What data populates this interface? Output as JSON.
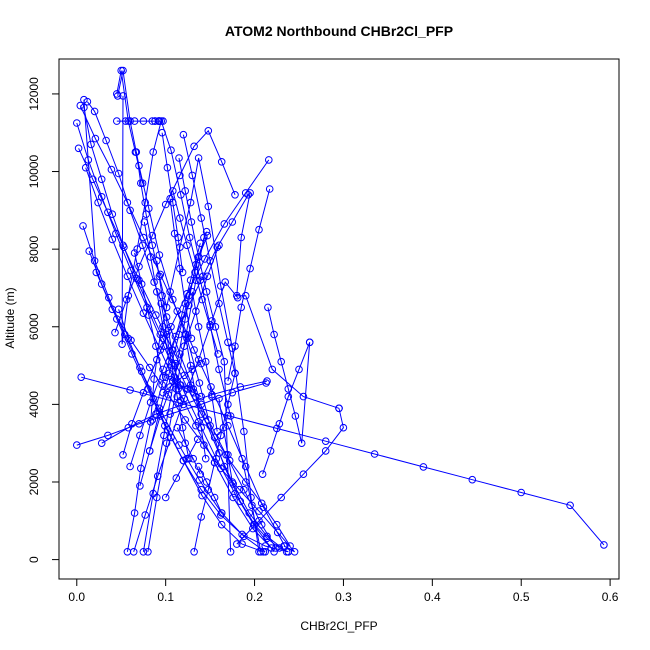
{
  "chart_data": {
    "type": "line",
    "title": "ATOM2 Northbound CHBr2Cl_PFP",
    "xlabel": "CHBr2Cl_PFP",
    "ylabel": "Altitude (m)",
    "xlim": [
      -0.02,
      0.61
    ],
    "ylim": [
      -500,
      12900
    ],
    "xticks": [
      0.0,
      0.1,
      0.2,
      0.3,
      0.4,
      0.5,
      0.6
    ],
    "xtick_labels": [
      "0.0",
      "0.1",
      "0.2",
      "0.3",
      "0.4",
      "0.5",
      "0.6"
    ],
    "yticks": [
      0,
      2000,
      4000,
      6000,
      8000,
      10000,
      12000
    ],
    "ytick_labels": [
      "0",
      "2000",
      "4000",
      "6000",
      "8000",
      "10000",
      "12000"
    ],
    "grid": false,
    "legend": "none",
    "marker": "open-circle",
    "color": "#0000ff",
    "series": [
      {
        "x": [
          0.057,
          0.065,
          0.072,
          0.083,
          0.087,
          0.094,
          0.105,
          0.116,
          0.128,
          0.137,
          0.148,
          0.162,
          0.175,
          0.188,
          0.196,
          0.205
        ],
        "y": [
          200,
          1200,
          2350,
          3550,
          4650,
          5800,
          6900,
          8050,
          9200,
          10350,
          9100,
          7050,
          5450,
          3300,
          1600,
          200
        ]
      },
      {
        "x": [
          0.207,
          0.197,
          0.186,
          0.173,
          0.16,
          0.15,
          0.139,
          0.127,
          0.117,
          0.106,
          0.095,
          0.086,
          0.077,
          0.068,
          0.058,
          0.051,
          0.052
        ],
        "y": [
          200,
          1400,
          2600,
          3700,
          4900,
          6050,
          7200,
          8300,
          9400,
          10550,
          11300,
          10500,
          9200,
          8000,
          6800,
          5550,
          11950
        ]
      },
      {
        "x": [
          0.046,
          0.052,
          0.06,
          0.07,
          0.081,
          0.093,
          0.108,
          0.124,
          0.138,
          0.15,
          0.166,
          0.184,
          0.2,
          0.214,
          0.228,
          0.238
        ],
        "y": [
          11950,
          12600,
          11300,
          10150,
          9050,
          7850,
          6700,
          5700,
          4550,
          3450,
          2400,
          1500,
          900,
          550,
          300,
          200
        ]
      },
      {
        "x": [
          0.24,
          0.225,
          0.208,
          0.19,
          0.172,
          0.155,
          0.14,
          0.125,
          0.111,
          0.097,
          0.082,
          0.067,
          0.053,
          0.04,
          0.028,
          0.016,
          0.008
        ],
        "y": [
          350,
          900,
          1450,
          2000,
          2550,
          3150,
          3750,
          4400,
          5050,
          5700,
          6450,
          7250,
          8050,
          8900,
          9800,
          10700,
          11650
        ]
      },
      {
        "x": [
          0.012,
          0.02,
          0.033,
          0.047,
          0.06,
          0.074,
          0.087,
          0.101,
          0.116,
          0.131,
          0.145,
          0.16,
          0.176,
          0.194,
          0.214,
          0.236
        ],
        "y": [
          11800,
          11550,
          10800,
          9950,
          9000,
          8100,
          7150,
          6250,
          5300,
          4400,
          3550,
          2750,
          1950,
          1200,
          600,
          200
        ]
      },
      {
        "x": [
          0.233,
          0.245,
          0.226,
          0.205,
          0.183,
          0.162,
          0.143,
          0.122,
          0.103,
          0.082,
          0.061,
          0.04,
          0.022,
          0.008
        ],
        "y": [
          350,
          200,
          700,
          1250,
          1800,
          2350,
          2950,
          3600,
          4250,
          4950,
          5650,
          6450,
          7400,
          11850
        ]
      },
      {
        "x": [
          0.004,
          0.021,
          0.039,
          0.057,
          0.075,
          0.094,
          0.113,
          0.132,
          0.151,
          0.17,
          0.19,
          0.21,
          0.234
        ],
        "y": [
          11700,
          10850,
          10050,
          9200,
          8300,
          7350,
          6400,
          5400,
          4450,
          3450,
          2400,
          1350,
          350
        ]
      },
      {
        "x": [
          0.0,
          0.013,
          0.028,
          0.044,
          0.061,
          0.079,
          0.098,
          0.117,
          0.137,
          0.157,
          0.178,
          0.199,
          0.222
        ],
        "y": [
          11250,
          10300,
          9350,
          8400,
          7450,
          6500,
          5500,
          4500,
          3550,
          2600,
          1700,
          900,
          200
        ]
      },
      {
        "x": [
          0.002,
          0.018,
          0.035,
          0.052,
          0.07,
          0.089,
          0.108,
          0.128,
          0.148,
          0.168,
          0.188,
          0.208,
          0.224
        ],
        "y": [
          10600,
          9800,
          8950,
          8100,
          7200,
          6300,
          5400,
          4500,
          3600,
          2700,
          1800,
          900,
          300
        ]
      },
      {
        "x": [
          0.01,
          0.024,
          0.04,
          0.057,
          0.075,
          0.094,
          0.114,
          0.134,
          0.155,
          0.176,
          0.198,
          0.219
        ],
        "y": [
          10100,
          9200,
          8250,
          7300,
          6350,
          5400,
          4400,
          3450,
          2500,
          1600,
          800,
          300
        ]
      },
      {
        "x": [
          0.014,
          0.028,
          0.045,
          0.062,
          0.08,
          0.099,
          0.12,
          0.141,
          0.163,
          0.186,
          0.21
        ],
        "y": [
          7950,
          7100,
          6200,
          5300,
          4400,
          3450,
          2550,
          1650,
          900,
          400,
          200
        ]
      },
      {
        "x": [
          0.007,
          0.02,
          0.036,
          0.054,
          0.073,
          0.093,
          0.115,
          0.138,
          0.163,
          0.188,
          0.212
        ],
        "y": [
          8600,
          7700,
          6750,
          5800,
          4850,
          3900,
          2950,
          2050,
          1200,
          600,
          200
        ]
      },
      {
        "x": [
          0.047,
          0.058,
          0.071,
          0.086,
          0.102,
          0.12,
          0.14,
          0.162,
          0.186,
          0.212,
          0.238
        ],
        "y": [
          6450,
          5700,
          4950,
          4150,
          3350,
          2550,
          1800,
          1150,
          650,
          350,
          200
        ]
      },
      {
        "x": [
          0.052,
          0.062,
          0.075,
          0.09,
          0.106,
          0.124,
          0.144,
          0.166,
          0.19,
          0.216
        ],
        "y": [
          2700,
          3500,
          4300,
          5150,
          6000,
          6850,
          7750,
          8650,
          9450,
          10300
        ]
      },
      {
        "x": [
          0.043,
          0.056,
          0.07,
          0.085,
          0.1,
          0.116,
          0.132,
          0.148,
          0.163,
          0.178
        ],
        "y": [
          5850,
          6700,
          7550,
          8350,
          9150,
          9900,
          10650,
          11050,
          10250,
          9400
        ]
      },
      {
        "x": [
          0.06,
          0.071,
          0.083,
          0.097,
          0.111,
          0.126,
          0.142,
          0.158,
          0.175,
          0.193
        ],
        "y": [
          2400,
          3200,
          4050,
          4900,
          5750,
          6550,
          7300,
          8050,
          8700,
          9400
        ]
      },
      {
        "x": [
          0.064,
          0.077,
          0.091,
          0.106,
          0.121,
          0.137,
          0.152,
          0.167,
          0.181
        ],
        "y": [
          200,
          1150,
          2150,
          3150,
          4150,
          5150,
          6150,
          7150,
          6750
        ]
      },
      {
        "x": [
          0.071,
          0.082,
          0.094,
          0.108,
          0.121,
          0.134,
          0.147,
          0.16
        ],
        "y": [
          1900,
          2800,
          3700,
          4600,
          5500,
          6400,
          7300,
          8100
        ]
      },
      {
        "x": [
          0.075,
          0.086,
          0.098,
          0.11,
          0.122,
          0.134,
          0.146
        ],
        "y": [
          200,
          1700,
          3200,
          4700,
          6200,
          7600,
          8450
        ]
      },
      {
        "x": [
          0.08,
          0.09,
          0.101,
          0.112,
          0.123,
          0.134,
          0.143
        ],
        "y": [
          200,
          1600,
          3000,
          4400,
          5800,
          7200,
          8300
        ]
      },
      {
        "x": [
          0.082,
          0.093,
          0.104,
          0.115,
          0.126,
          0.137,
          0.147
        ],
        "y": [
          2800,
          3800,
          4800,
          5800,
          6800,
          7800,
          8350
        ]
      },
      {
        "x": [
          0.085,
          0.096,
          0.107,
          0.118,
          0.128,
          0.139
        ],
        "y": [
          3600,
          4500,
          5400,
          6300,
          7200,
          8150
        ]
      },
      {
        "x": [
          0.028,
          0.058,
          0.089,
          0.12,
          0.152,
          0.184,
          0.214
        ],
        "y": [
          3000,
          3400,
          3750,
          4000,
          4250,
          4450,
          4600
        ]
      },
      {
        "x": [
          0.0,
          0.035,
          0.07,
          0.105,
          0.14,
          0.175,
          0.213
        ],
        "y": [
          2950,
          3200,
          3500,
          3750,
          4000,
          4300,
          4550
        ]
      },
      {
        "x": [
          0.005,
          0.06,
          0.115,
          0.17,
          0.225,
          0.28,
          0.335,
          0.39,
          0.445,
          0.5,
          0.555,
          0.593
        ],
        "y": [
          4700,
          4370,
          4040,
          3710,
          3380,
          3050,
          2720,
          2390,
          2060,
          1730,
          1400,
          380
        ]
      },
      {
        "x": [
          0.097,
          0.105,
          0.113,
          0.121,
          0.13,
          0.14
        ],
        "y": [
          4300,
          4450,
          4600,
          4750,
          4900,
          5050
        ]
      },
      {
        "x": [
          0.1,
          0.108,
          0.116,
          0.124,
          0.132,
          0.14
        ],
        "y": [
          4700,
          4600,
          4500,
          4400,
          4300,
          4200
        ]
      },
      {
        "x": [
          0.215,
          0.222,
          0.23,
          0.238,
          0.246,
          0.253,
          0.262
        ],
        "y": [
          6500,
          5800,
          5100,
          4400,
          3700,
          3000,
          5600
        ]
      },
      {
        "x": [
          0.262,
          0.25,
          0.238,
          0.228,
          0.218,
          0.209
        ],
        "y": [
          5600,
          4900,
          4200,
          3500,
          2800,
          2200
        ]
      },
      {
        "x": [
          0.195,
          0.185,
          0.18,
          0.19,
          0.22,
          0.255,
          0.295
        ],
        "y": [
          9450,
          8300,
          6800,
          6800,
          4900,
          4200,
          3900
        ]
      },
      {
        "x": [
          0.295,
          0.3,
          0.28,
          0.255,
          0.23,
          0.205,
          0.18
        ],
        "y": [
          3900,
          3400,
          2800,
          2200,
          1600,
          1000,
          400
        ]
      },
      {
        "x": [
          0.217,
          0.205,
          0.195,
          0.185,
          0.178,
          0.17
        ],
        "y": [
          9550,
          8500,
          7500,
          6500,
          5500,
          4600
        ]
      },
      {
        "x": [
          0.12,
          0.13,
          0.14,
          0.15,
          0.16,
          0.17,
          0.178
        ],
        "y": [
          10950,
          9900,
          8800,
          7700,
          6600,
          5600,
          4800
        ]
      },
      {
        "x": [
          0.178,
          0.17,
          0.162,
          0.155,
          0.148,
          0.14,
          0.132
        ],
        "y": [
          4800,
          4000,
          3200,
          2500,
          1800,
          1100,
          200
        ]
      },
      {
        "x": [
          0.108,
          0.116,
          0.124,
          0.133,
          0.141,
          0.15,
          0.159
        ],
        "y": [
          9500,
          8800,
          8100,
          7400,
          6700,
          6000,
          5300
        ]
      },
      {
        "x": [
          0.115,
          0.122,
          0.129,
          0.137,
          0.146,
          0.156,
          0.166,
          0.173
        ],
        "y": [
          10350,
          9500,
          8700,
          7800,
          6900,
          6000,
          5100,
          200
        ]
      },
      {
        "x": [
          0.088,
          0.093,
          0.097,
          0.092,
          0.088,
          0.093
        ],
        "y": [
          11300,
          11300,
          11300,
          11300,
          11300,
          11300
        ]
      },
      {
        "x": [
          0.045,
          0.055,
          0.065,
          0.075,
          0.085,
          0.092
        ],
        "y": [
          11300,
          11300,
          11300,
          11300,
          11300,
          11300
        ]
      },
      {
        "x": [
          0.045,
          0.05,
          0.058,
          0.066,
          0.074
        ],
        "y": [
          12000,
          12600,
          11300,
          10500,
          9700
        ]
      },
      {
        "x": [
          0.067,
          0.072,
          0.078,
          0.085,
          0.093,
          0.101
        ],
        "y": [
          10500,
          9700,
          8900,
          8100,
          7300,
          6500
        ]
      },
      {
        "x": [
          0.096,
          0.102,
          0.108,
          0.114,
          0.119
        ],
        "y": [
          11000,
          10100,
          9200,
          8300,
          7400
        ]
      },
      {
        "x": [
          0.105,
          0.11,
          0.116,
          0.122,
          0.129
        ],
        "y": [
          9300,
          8400,
          7500,
          6600,
          5700
        ]
      },
      {
        "x": [
          0.065,
          0.073,
          0.081,
          0.089,
          0.097
        ],
        "y": [
          7900,
          7100,
          6300,
          5500,
          4700
        ]
      },
      {
        "x": [
          0.076,
          0.083,
          0.09,
          0.097,
          0.104
        ],
        "y": [
          8700,
          7800,
          6900,
          6000,
          5100
        ]
      },
      {
        "x": [
          0.09,
          0.096,
          0.103,
          0.11,
          0.117
        ],
        "y": [
          7700,
          6800,
          5900,
          5000,
          4100
        ]
      },
      {
        "x": [
          0.095,
          0.101,
          0.107,
          0.113,
          0.119,
          0.126
        ],
        "y": [
          6600,
          5800,
          5000,
          4200,
          3400,
          2600
        ]
      },
      {
        "x": [
          0.122,
          0.128,
          0.134,
          0.14,
          0.145
        ],
        "y": [
          5800,
          5000,
          4200,
          3400,
          2600
        ]
      },
      {
        "x": [
          0.13,
          0.137,
          0.145,
          0.152,
          0.158
        ],
        "y": [
          6900,
          6000,
          5100,
          4200,
          3300
        ]
      },
      {
        "x": [
          0.16,
          0.165,
          0.17,
          0.175
        ],
        "y": [
          4150,
          3400,
          2700,
          2000
        ]
      },
      {
        "x": [
          0.1,
          0.112,
          0.124,
          0.136
        ],
        "y": [
          1600,
          2100,
          2600,
          3100
        ]
      },
      {
        "x": [
          0.113,
          0.122,
          0.131,
          0.139
        ],
        "y": [
          3400,
          3000,
          2600,
          2200
        ]
      },
      {
        "x": [
          0.137,
          0.146,
          0.155,
          0.163
        ],
        "y": [
          2400,
          2000,
          1600,
          1200
        ]
      }
    ]
  }
}
